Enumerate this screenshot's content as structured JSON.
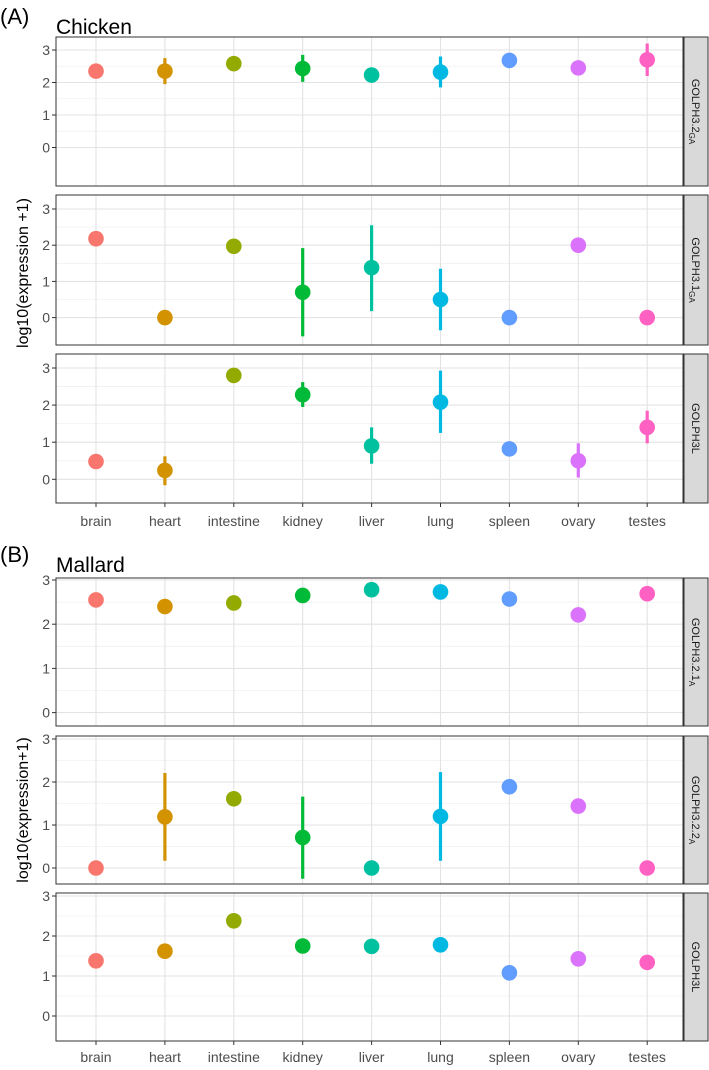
{
  "figure": {
    "categories": [
      "brain",
      "heart",
      "intestine",
      "kidney",
      "liver",
      "lung",
      "spleen",
      "ovary",
      "testes"
    ],
    "colors": [
      "#F8766D",
      "#D39200",
      "#93AA00",
      "#00BA38",
      "#00C19F",
      "#00B9E3",
      "#619CFF",
      "#DB72FB",
      "#FF61C3"
    ]
  },
  "chart_data": [
    {
      "type": "scatter",
      "panel_label": "(A)",
      "title": "Chicken",
      "ylabel": "log10(expression +1)",
      "xlabel": "",
      "ylim": [
        -0.5,
        3.2
      ],
      "yticks": [
        "0",
        "1",
        "2",
        "3"
      ],
      "facets": [
        {
          "strip_main": "GOLPH3.2",
          "strip_sub": "GA",
          "values": [
            2.35,
            2.35,
            2.58,
            2.43,
            2.23,
            2.32,
            2.68,
            2.45,
            2.7
          ],
          "error_low": [
            null,
            1.95,
            null,
            2.02,
            null,
            1.85,
            null,
            null,
            2.2
          ],
          "error_high": [
            null,
            2.75,
            null,
            2.85,
            null,
            2.8,
            null,
            null,
            3.2
          ]
        },
        {
          "strip_main": "GOLPH3.1",
          "strip_sub": "GA",
          "values": [
            2.18,
            0.0,
            1.97,
            0.7,
            1.38,
            0.5,
            0.0,
            2.0,
            0.0
          ],
          "error_low": [
            null,
            null,
            null,
            -0.52,
            0.18,
            -0.35,
            null,
            null,
            null
          ],
          "error_high": [
            null,
            null,
            null,
            1.92,
            2.55,
            1.35,
            null,
            null,
            null
          ]
        },
        {
          "strip_main": "GOLPH3L",
          "strip_sub": "",
          "values": [
            0.48,
            0.24,
            2.8,
            2.28,
            0.9,
            2.08,
            0.82,
            0.5,
            1.4
          ],
          "error_low": [
            null,
            -0.16,
            null,
            1.95,
            0.42,
            1.25,
            null,
            0.05,
            0.97
          ],
          "error_high": [
            null,
            0.62,
            null,
            2.62,
            1.4,
            2.93,
            null,
            0.97,
            1.85
          ]
        }
      ]
    },
    {
      "type": "scatter",
      "panel_label": "(B)",
      "title": "Mallard",
      "ylabel": "log10(expression+1)",
      "xlabel": "",
      "ylim": [
        -0.5,
        3.0
      ],
      "yticks": [
        "0",
        "1",
        "2",
        "3"
      ],
      "facets": [
        {
          "strip_main": "GOLPH3.2.1",
          "strip_sub": "A",
          "values": [
            2.55,
            2.4,
            2.48,
            2.65,
            2.78,
            2.73,
            2.57,
            2.21,
            2.69
          ],
          "error_low": [
            null,
            null,
            null,
            null,
            null,
            null,
            null,
            null,
            null
          ],
          "error_high": [
            null,
            null,
            null,
            null,
            null,
            null,
            null,
            null,
            null
          ]
        },
        {
          "strip_main": "GOLPH3.2.2",
          "strip_sub": "A",
          "values": [
            0.0,
            1.19,
            1.61,
            0.71,
            0.0,
            1.2,
            1.89,
            1.44,
            0.0
          ],
          "error_low": [
            null,
            0.17,
            null,
            -0.25,
            null,
            0.17,
            null,
            null,
            null
          ],
          "error_high": [
            null,
            2.21,
            null,
            1.66,
            null,
            2.23,
            null,
            null,
            null
          ]
        },
        {
          "strip_main": "GOLPH3L",
          "strip_sub": "",
          "values": [
            1.38,
            1.62,
            2.38,
            1.75,
            1.74,
            1.78,
            1.08,
            1.43,
            1.34
          ],
          "error_low": [
            null,
            null,
            null,
            null,
            1.64,
            null,
            null,
            null,
            null
          ],
          "error_high": [
            null,
            null,
            null,
            null,
            1.84,
            null,
            null,
            null,
            null
          ]
        }
      ]
    }
  ]
}
